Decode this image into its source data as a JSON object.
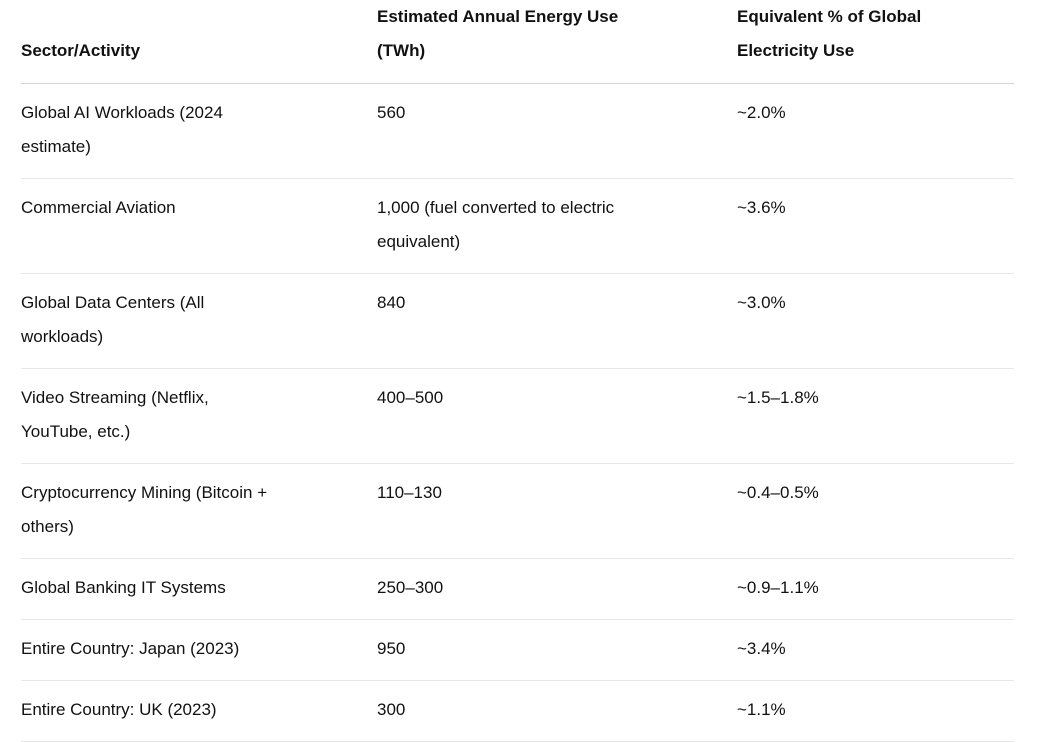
{
  "chart_data": {
    "type": "table",
    "title": "",
    "columns": [
      "Sector/Activity",
      "Estimated Annual Energy Use\n(TWh)",
      "Equivalent % of Global\nElectricity Use"
    ],
    "rows": [
      [
        "Global AI Workloads (2024\nestimate)",
        "560",
        "~2.0%"
      ],
      [
        "Commercial Aviation",
        "1,000 (fuel converted to electric\nequivalent)",
        "~3.6%"
      ],
      [
        "Global Data Centers (All\nworkloads)",
        "840",
        "~3.0%"
      ],
      [
        "Video Streaming (Netflix,\nYouTube, etc.)",
        "400–500",
        "~1.5–1.8%"
      ],
      [
        "Cryptocurrency Mining (Bitcoin +\nothers)",
        "110–130",
        "~0.4–0.5%"
      ],
      [
        "Global Banking IT Systems",
        "250–300",
        "~0.9–1.1%"
      ],
      [
        "Entire Country: Japan (2023)",
        "950",
        "~3.4%"
      ],
      [
        "Entire Country: UK (2023)",
        "300",
        "~1.1%"
      ]
    ],
    "layout": {
      "header_position": "top",
      "grid": "horizontal-dividers-only",
      "alignment": "left"
    }
  },
  "colors": {
    "background": "#ffffff",
    "text": "#111111",
    "header_divider": "#d3d3d3",
    "row_divider": "#e7e7e7"
  }
}
